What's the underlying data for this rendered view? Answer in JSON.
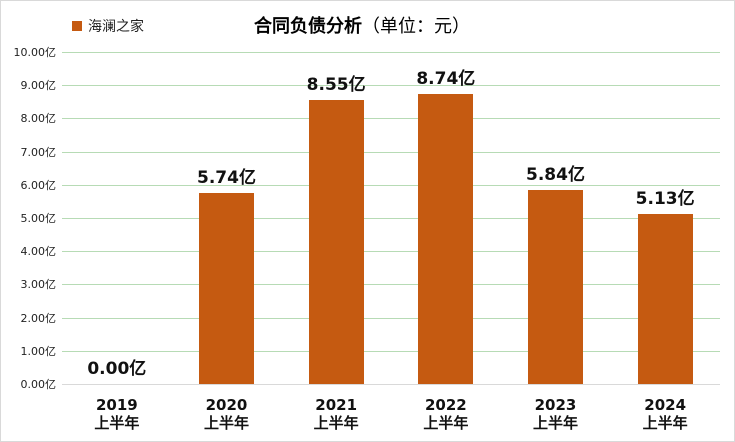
{
  "chart_data": {
    "type": "bar",
    "title": "合同负债分析",
    "title_unit": "（单位：元）",
    "legend": [
      {
        "name": "海澜之家",
        "color": "#c55a11"
      }
    ],
    "legend_position": "top-left",
    "categories": [
      "2019\n上半年",
      "2020\n上半年",
      "2021\n上半年",
      "2022\n上半年",
      "2023\n上半年",
      "2024\n上半年"
    ],
    "category_years": [
      "2019",
      "2020",
      "2021",
      "2022",
      "2023",
      "2024"
    ],
    "category_suffix": "上半年",
    "series": [
      {
        "name": "海澜之家",
        "values": [
          0.0,
          5.74,
          8.55,
          8.74,
          5.84,
          5.13
        ],
        "color": "#c55a11"
      }
    ],
    "data_labels": [
      "0.00亿",
      "5.74亿",
      "8.55亿",
      "8.74亿",
      "5.84亿",
      "5.13亿"
    ],
    "xlabel": "",
    "ylabel": "",
    "ylim": [
      0,
      10
    ],
    "yticks": [
      "0.00亿",
      "1.00亿",
      "2.00亿",
      "3.00亿",
      "4.00亿",
      "5.00亿",
      "6.00亿",
      "7.00亿",
      "8.00亿",
      "9.00亿",
      "10.00亿"
    ],
    "grid": true,
    "grid_color": "#b7dbb5",
    "unit": "亿"
  }
}
